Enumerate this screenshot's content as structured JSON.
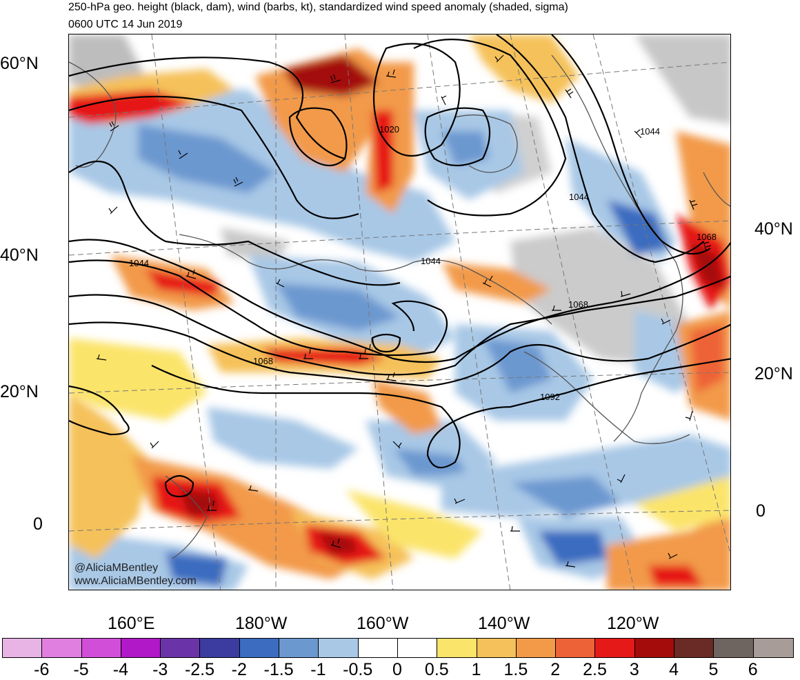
{
  "header": {
    "title": "250-hPa geo. height (black, dam), wind (barbs, kt), standardized wind speed anomaly (shaded, sigma)",
    "valid_time": "0600 UTC 14 Jun 2019"
  },
  "map": {
    "left_lat_labels": [
      "60°N",
      "40°N",
      "20°N",
      "0"
    ],
    "right_lat_labels": [
      "40°N",
      "20°N",
      "0"
    ],
    "lon_labels": [
      "160°E",
      "180°W",
      "160°W",
      "140°W",
      "120°W"
    ],
    "contour_labels": [
      "1020",
      "1044",
      "1044",
      "1044",
      "1068",
      "1068",
      "1068",
      "1044",
      "1092"
    ],
    "credit": [
      "@AliciaMBentley",
      "www.AliciaMBentley.com"
    ]
  },
  "colorbar": {
    "colors": [
      "#e8b4e6",
      "#e07fe0",
      "#d14fd8",
      "#b018c8",
      "#6a34a8",
      "#3b3ba0",
      "#3b6cc0",
      "#6c98d0",
      "#a8c8e6",
      "#ffffff",
      "#ffffff",
      "#fbe46a",
      "#f5c15a",
      "#f29a48",
      "#ee6238",
      "#e61919",
      "#a40c0c",
      "#6a2a25",
      "#6e6460",
      "#a89c98"
    ],
    "labels": [
      "-6",
      "-5",
      "-4",
      "-3",
      "-2.5",
      "-2",
      "-1.5",
      "-1",
      "-0.5",
      "0",
      "0.5",
      "1",
      "1.5",
      "2",
      "2.5",
      "3",
      "4",
      "5",
      "6"
    ]
  }
}
